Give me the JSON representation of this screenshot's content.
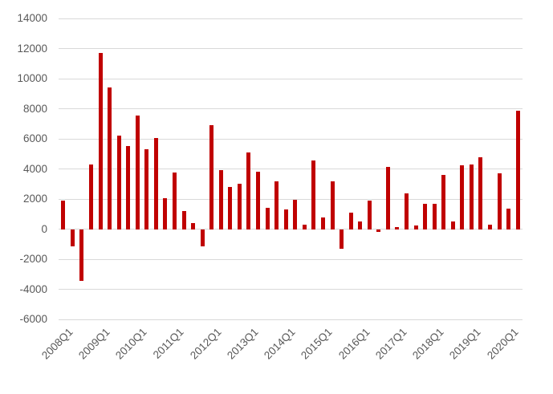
{
  "chart_data": {
    "type": "bar",
    "title": "",
    "xlabel": "",
    "ylabel": "",
    "grid": true,
    "legend": false,
    "ylim": [
      -6000,
      14000
    ],
    "y_tick_step": 2000,
    "y_ticks": [
      14000,
      12000,
      10000,
      8000,
      6000,
      4000,
      2000,
      0,
      -2000,
      -4000,
      -6000
    ],
    "y_tick_labels": [
      "14000",
      "12000",
      "10000",
      "8000",
      "6000",
      "4000",
      "2000",
      "0",
      "-2000",
      "-4000",
      "-6000"
    ],
    "x_tick_every": 4,
    "x_tick_labels": [
      "2008Q1",
      "2009Q1",
      "2010Q1",
      "2011Q1",
      "2012Q1",
      "2013Q1",
      "2014Q1",
      "2015Q1",
      "2016Q1",
      "2017Q1",
      "2018Q1",
      "2019Q1",
      "2020Q1"
    ],
    "categories": [
      "2008Q1",
      "2008Q2",
      "2008Q3",
      "2008Q4",
      "2009Q1",
      "2009Q2",
      "2009Q3",
      "2009Q4",
      "2010Q1",
      "2010Q2",
      "2010Q3",
      "2010Q4",
      "2011Q1",
      "2011Q2",
      "2011Q3",
      "2011Q4",
      "2012Q1",
      "2012Q2",
      "2012Q3",
      "2012Q4",
      "2013Q1",
      "2013Q2",
      "2013Q3",
      "2013Q4",
      "2014Q1",
      "2014Q2",
      "2014Q3",
      "2014Q4",
      "2015Q1",
      "2015Q2",
      "2015Q3",
      "2015Q4",
      "2016Q1",
      "2016Q2",
      "2016Q3",
      "2016Q4",
      "2017Q1",
      "2017Q2",
      "2017Q3",
      "2017Q4",
      "2018Q1",
      "2018Q2",
      "2018Q3",
      "2018Q4",
      "2019Q1",
      "2019Q2",
      "2019Q3",
      "2019Q4",
      "2020Q1",
      "2020Q2"
    ],
    "values": [
      1900,
      -1150,
      -3450,
      4300,
      11700,
      9400,
      6200,
      5500,
      7550,
      5300,
      6050,
      2050,
      3750,
      1200,
      400,
      -1150,
      6900,
      3900,
      2820,
      3000,
      5100,
      3800,
      1400,
      3200,
      1300,
      1950,
      300,
      4550,
      750,
      3150,
      -1280,
      1100,
      500,
      1900,
      -200,
      4150,
      150,
      2400,
      250,
      1700,
      1700,
      3600,
      500,
      4250,
      4300,
      4750,
      280,
      3700,
      1350,
      7850
    ],
    "colors": {
      "bar": "#C00000",
      "gridline": "#D9D9D9",
      "tick_label": "#595959",
      "background": "#FFFFFF"
    }
  }
}
